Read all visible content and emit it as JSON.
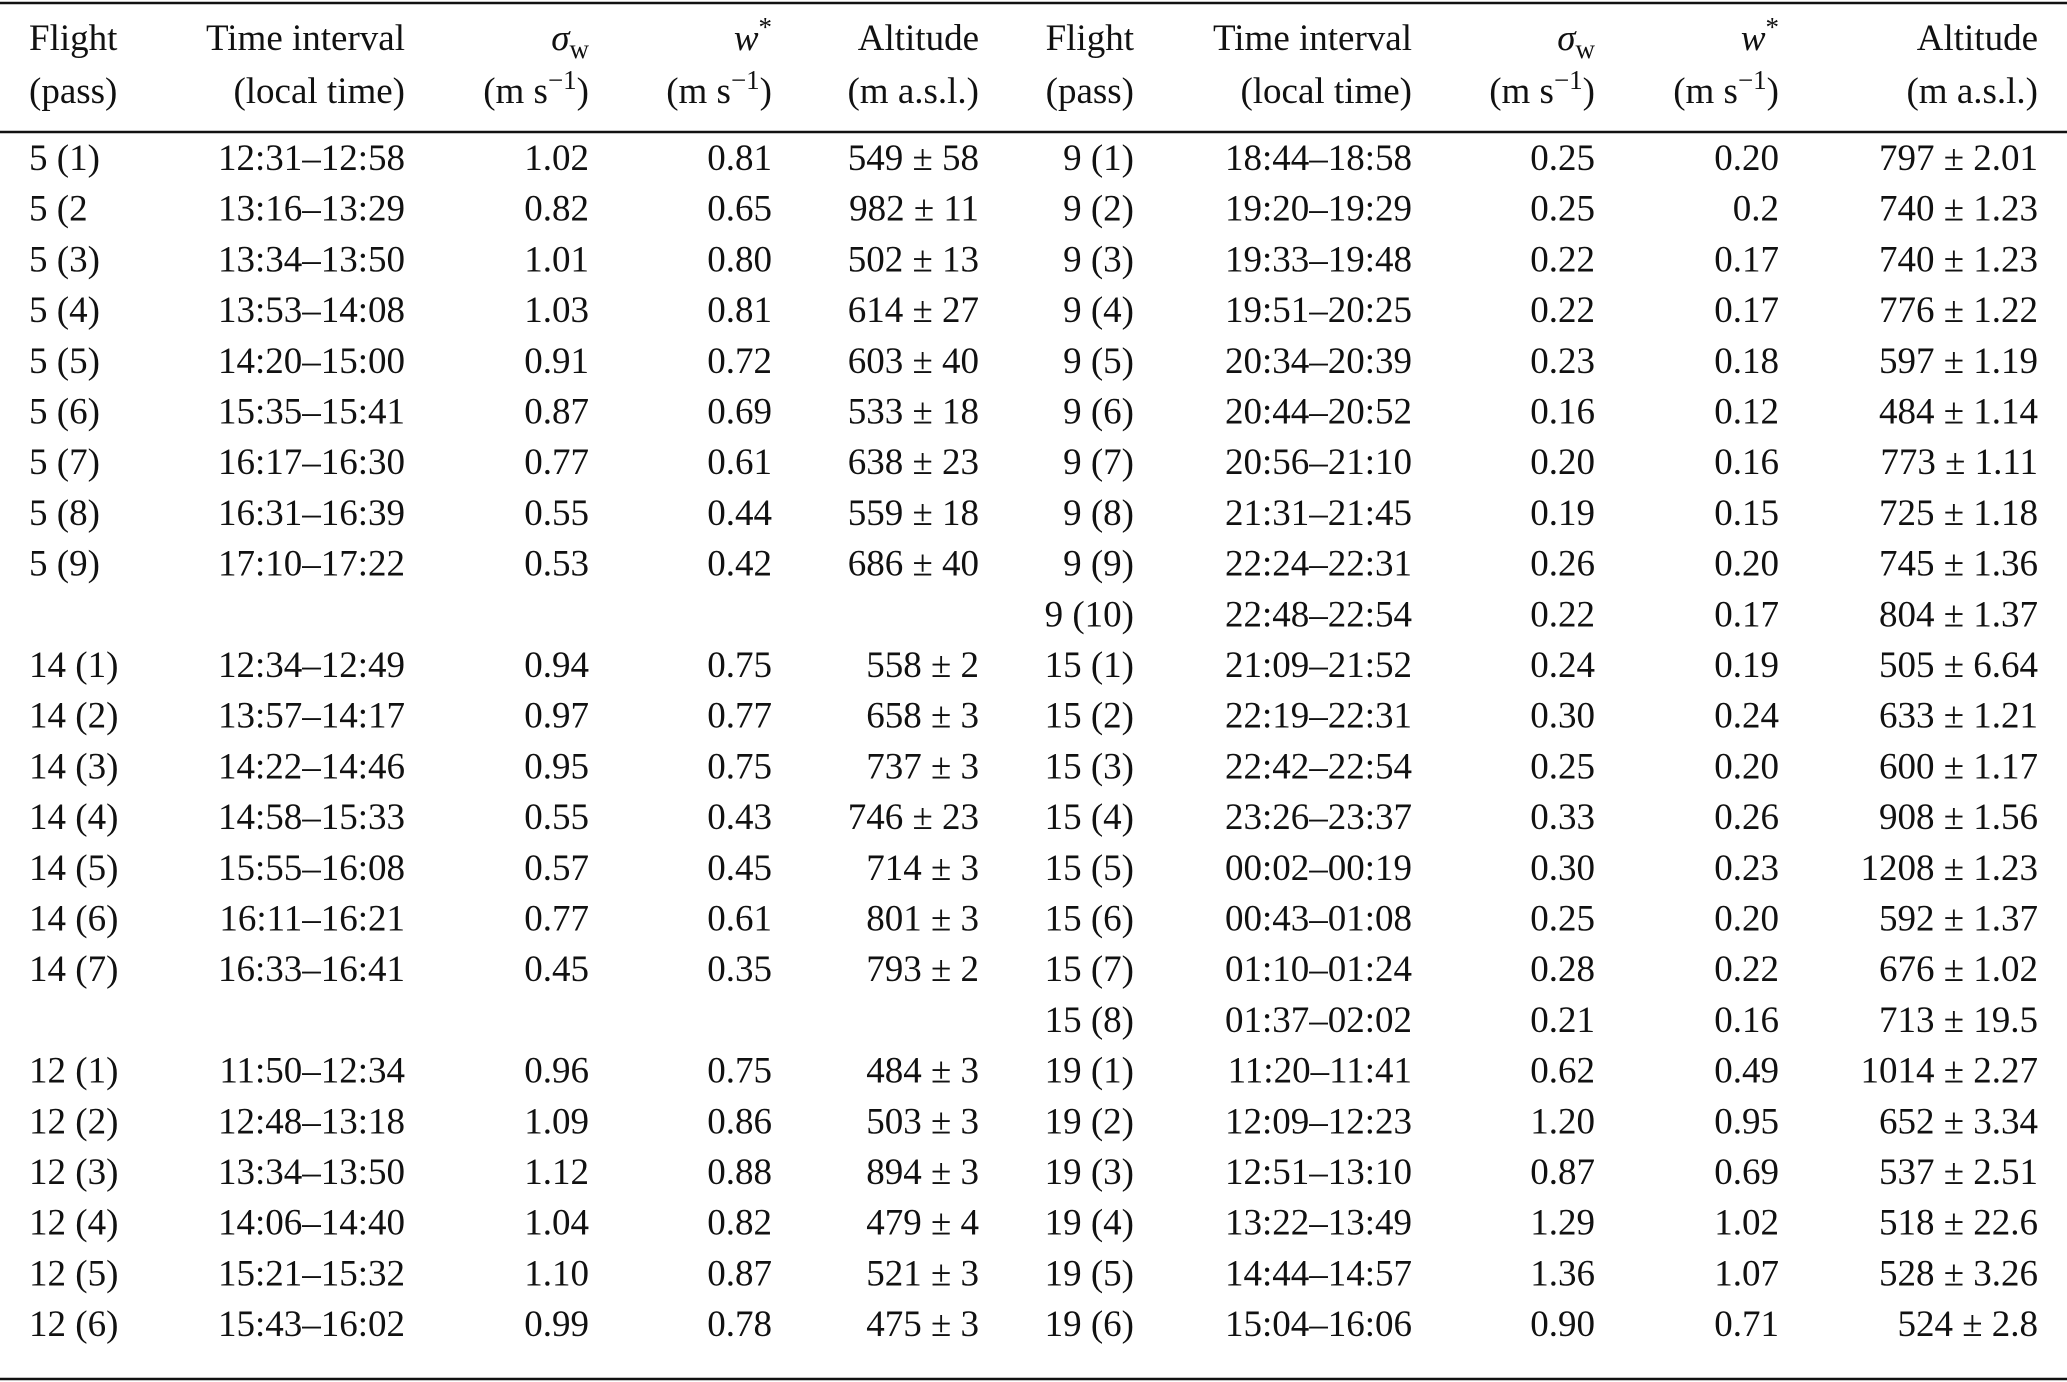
{
  "header": {
    "columns": [
      {
        "lines": [
          [
            {
              "t": "Flight"
            }
          ],
          [
            {
              "t": "(pass)"
            }
          ]
        ]
      },
      {
        "lines": [
          [
            {
              "t": "Time interval"
            }
          ],
          [
            {
              "t": "(local time)"
            }
          ]
        ]
      },
      {
        "lines": [
          [
            {
              "t": "σ",
              "style": "italic"
            },
            {
              "t": "w",
              "style": "sub"
            }
          ],
          [
            {
              "t": "(m s"
            },
            {
              "t": "−1",
              "style": "sup"
            },
            {
              "t": ")"
            }
          ]
        ]
      },
      {
        "lines": [
          [
            {
              "t": "w",
              "style": "italic"
            },
            {
              "t": "*",
              "style": "sup"
            }
          ],
          [
            {
              "t": "(m s"
            },
            {
              "t": "−1",
              "style": "sup"
            },
            {
              "t": ")"
            }
          ]
        ]
      },
      {
        "lines": [
          [
            {
              "t": "Altitude"
            }
          ],
          [
            {
              "t": "(m a.s.l.)"
            }
          ]
        ]
      }
    ]
  },
  "table": {
    "rows": [
      [
        "5 (1)",
        "12:31–12:58",
        "1.02",
        "0.81",
        "549 ± 58",
        "9 (1)",
        "18:44–18:58",
        "0.25",
        "0.20",
        "797 ± 2.01"
      ],
      [
        "5 (2",
        "13:16–13:29",
        "0.82",
        "0.65",
        "982 ± 11",
        "9 (2)",
        "19:20–19:29",
        "0.25",
        "0.2",
        "740 ± 1.23"
      ],
      [
        "5 (3)",
        "13:34–13:50",
        "1.01",
        "0.80",
        "502 ± 13",
        "9 (3)",
        "19:33–19:48",
        "0.22",
        "0.17",
        "740 ± 1.23"
      ],
      [
        "5 (4)",
        "13:53–14:08",
        "1.03",
        "0.81",
        "614 ± 27",
        "9 (4)",
        "19:51–20:25",
        "0.22",
        "0.17",
        "776 ± 1.22"
      ],
      [
        "5 (5)",
        "14:20–15:00",
        "0.91",
        "0.72",
        "603 ± 40",
        "9 (5)",
        "20:34–20:39",
        "0.23",
        "0.18",
        "597 ± 1.19"
      ],
      [
        "5 (6)",
        "15:35–15:41",
        "0.87",
        "0.69",
        "533 ± 18",
        "9 (6)",
        "20:44–20:52",
        "0.16",
        "0.12",
        "484 ± 1.14"
      ],
      [
        "5 (7)",
        "16:17–16:30",
        "0.77",
        "0.61",
        "638 ± 23",
        "9 (7)",
        "20:56–21:10",
        "0.20",
        "0.16",
        "773 ± 1.11"
      ],
      [
        "5 (8)",
        "16:31–16:39",
        "0.55",
        "0.44",
        "559 ± 18",
        "9 (8)",
        "21:31–21:45",
        "0.19",
        "0.15",
        "725 ± 1.18"
      ],
      [
        "5 (9)",
        "17:10–17:22",
        "0.53",
        "0.42",
        "686 ± 40",
        "9 (9)",
        "22:24–22:31",
        "0.26",
        "0.20",
        "745 ± 1.36"
      ],
      [
        null,
        null,
        null,
        null,
        null,
        "9 (10)",
        "22:48–22:54",
        "0.22",
        "0.17",
        "804 ± 1.37"
      ],
      [
        "14 (1)",
        "12:34–12:49",
        "0.94",
        "0.75",
        "558 ± 2",
        "15 (1)",
        "21:09–21:52",
        "0.24",
        "0.19",
        "505 ± 6.64"
      ],
      [
        "14 (2)",
        "13:57–14:17",
        "0.97",
        "0.77",
        "658 ± 3",
        "15 (2)",
        "22:19–22:31",
        "0.30",
        "0.24",
        "633 ± 1.21"
      ],
      [
        "14 (3)",
        "14:22–14:46",
        "0.95",
        "0.75",
        "737 ± 3",
        "15 (3)",
        "22:42–22:54",
        "0.25",
        "0.20",
        "600 ± 1.17"
      ],
      [
        "14 (4)",
        "14:58–15:33",
        "0.55",
        "0.43",
        "746 ± 23",
        "15 (4)",
        "23:26–23:37",
        "0.33",
        "0.26",
        "908 ± 1.56"
      ],
      [
        "14 (5)",
        "15:55–16:08",
        "0.57",
        "0.45",
        "714 ± 3",
        "15 (5)",
        "00:02–00:19",
        "0.30",
        "0.23",
        "1208 ± 1.23"
      ],
      [
        "14 (6)",
        "16:11–16:21",
        "0.77",
        "0.61",
        "801 ± 3",
        "15 (6)",
        "00:43–01:08",
        "0.25",
        "0.20",
        "592 ± 1.37"
      ],
      [
        "14 (7)",
        "16:33–16:41",
        "0.45",
        "0.35",
        "793 ± 2",
        "15 (7)",
        "01:10–01:24",
        "0.28",
        "0.22",
        "676 ± 1.02"
      ],
      [
        null,
        null,
        null,
        null,
        null,
        "15 (8)",
        "01:37–02:02",
        "0.21",
        "0.16",
        "713 ± 19.5"
      ],
      [
        "12 (1)",
        "11:50–12:34",
        "0.96",
        "0.75",
        "484 ± 3",
        "19 (1)",
        "11:20–11:41",
        "0.62",
        "0.49",
        "1014 ± 2.27"
      ],
      [
        "12 (2)",
        "12:48–13:18",
        "1.09",
        "0.86",
        "503 ± 3",
        "19 (2)",
        "12:09–12:23",
        "1.20",
        "0.95",
        "652 ± 3.34"
      ],
      [
        "12 (3)",
        "13:34–13:50",
        "1.12",
        "0.88",
        "894 ± 3",
        "19 (3)",
        "12:51–13:10",
        "0.87",
        "0.69",
        "537 ± 2.51"
      ],
      [
        "12 (4)",
        "14:06–14:40",
        "1.04",
        "0.82",
        "479 ± 4",
        "19 (4)",
        "13:22–13:49",
        "1.29",
        "1.02",
        "518 ± 22.6"
      ],
      [
        "12 (5)",
        "15:21–15:32",
        "1.10",
        "0.87",
        "521 ± 3",
        "19 (5)",
        "14:44–14:57",
        "1.36",
        "1.07",
        "528 ± 3.26"
      ],
      [
        "12 (6)",
        "15:43–16:02",
        "0.99",
        "0.78",
        "475 ± 3",
        "19 (6)",
        "15:04–16:06",
        "0.90",
        "0.71",
        "524 ± 2.8"
      ]
    ]
  }
}
